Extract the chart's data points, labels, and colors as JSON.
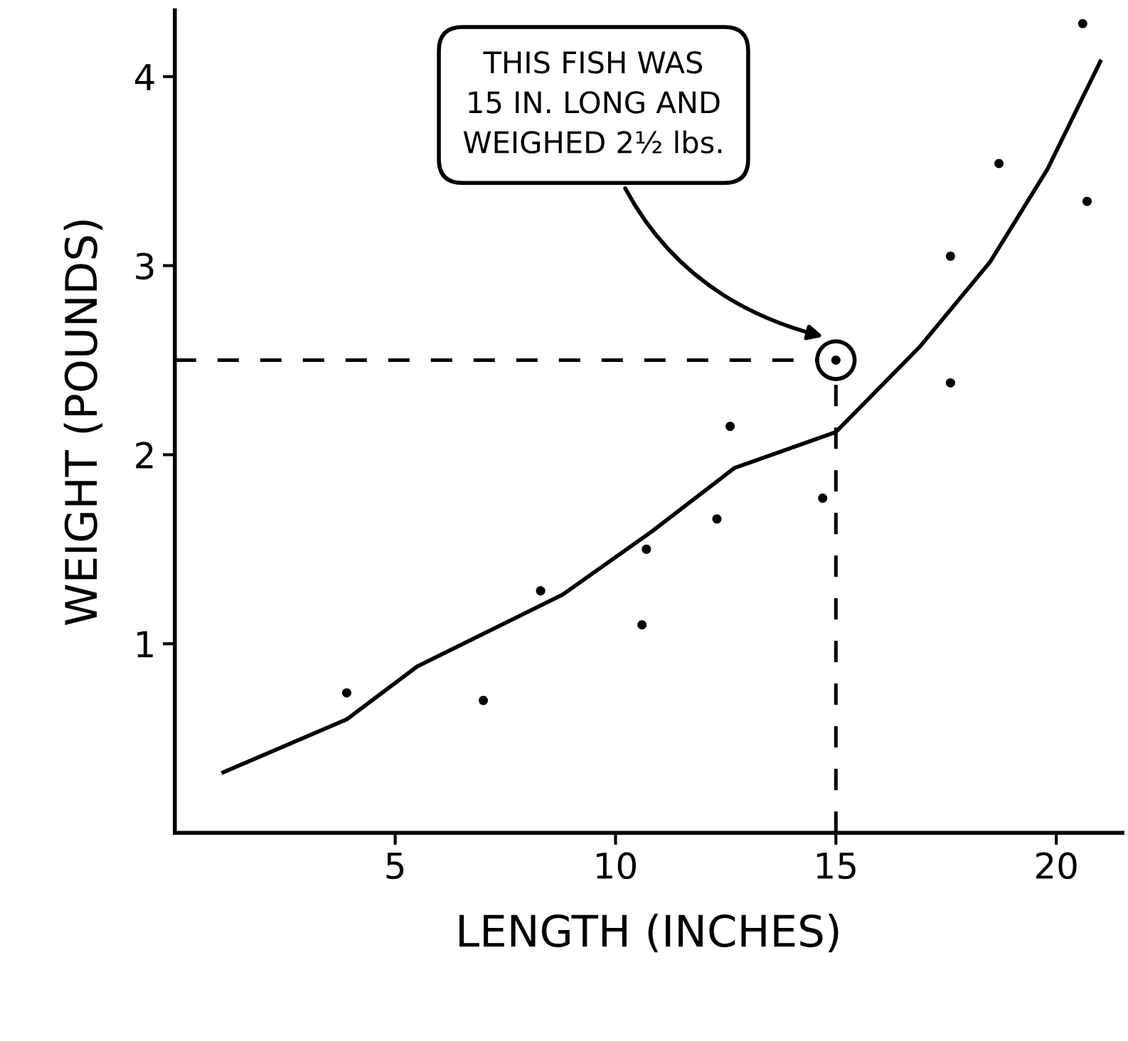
{
  "chart_data": {
    "type": "scatter",
    "xlabel": "LENGTH (INCHES)",
    "ylabel": "WEIGHT (POUNDS)",
    "xlim": [
      0,
      21.5
    ],
    "ylim": [
      0,
      4.35
    ],
    "xticks": [
      5,
      10,
      15,
      20
    ],
    "yticks": [
      1,
      2,
      3,
      4
    ],
    "grid": false,
    "legend": false,
    "series": [
      {
        "color": "#000000",
        "marker": "circle",
        "x": [
          3.9,
          7.0,
          8.3,
          10.6,
          10.7,
          12.3,
          12.6,
          14.7,
          15.0,
          17.6,
          17.6,
          18.7,
          20.6,
          20.7
        ],
        "values": [
          0.74,
          0.7,
          1.28,
          1.1,
          1.5,
          1.66,
          2.15,
          1.77,
          2.5,
          2.38,
          3.05,
          3.54,
          4.28,
          3.34
        ]
      },
      {
        "type": "line",
        "color": "#000000",
        "marker": "none",
        "line_style": "solid",
        "x": [
          1.1,
          3.9,
          5.5,
          8.8,
          10.8,
          12.7,
          15.0,
          16.9,
          18.5,
          19.8,
          21.0
        ],
        "values": [
          0.32,
          0.6,
          0.88,
          1.26,
          1.59,
          1.93,
          2.12,
          2.57,
          3.02,
          3.51,
          4.08
        ]
      }
    ],
    "ref_lines": [
      {
        "axis": "y",
        "value": 2.5,
        "color": "#000000",
        "line_style": "dashed"
      },
      {
        "axis": "x",
        "value": 15,
        "color": "#000000",
        "line_style": "dashed"
      }
    ],
    "annotations": [
      "THIS FISH WAS\n15 IN. LONG AND\nWEIGHED 2½ lbs."
    ]
  }
}
